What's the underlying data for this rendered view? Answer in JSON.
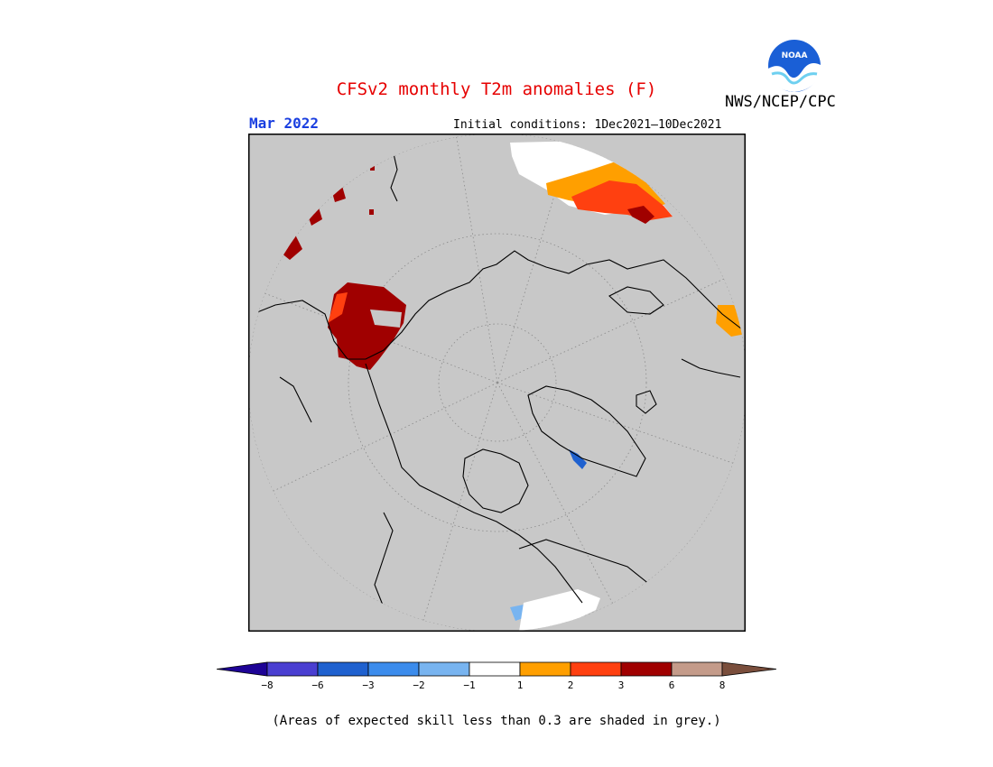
{
  "title": "CFSv2 monthly T2m anomalies (F)",
  "valid_month": "Mar 2022",
  "initial_conditions": "Initial conditions: 1Dec2021–10Dec2021",
  "agency": "NWS/NCEP/CPC",
  "logo_text": "NOAA",
  "footnote": "(Areas of expected skill less than 0.3 are shaded in grey.)",
  "colorbar": {
    "tick_labels": [
      "−8",
      "−6",
      "−3",
      "−2",
      "−1",
      "1",
      "2",
      "3",
      "6",
      "8"
    ],
    "colors": [
      "#1e0396",
      "#4a3fd1",
      "#1f61cf",
      "#3c8cec",
      "#78b4f0",
      "#ffffff",
      "#ff9f00",
      "#ff4010",
      "#a00000",
      "#c49b8a",
      "#7a4e3c"
    ]
  },
  "map": {
    "projection": "north polar stereographic",
    "background_color": "#c8c8c8",
    "coastline_color": "#000000",
    "grid": "dotted"
  }
}
